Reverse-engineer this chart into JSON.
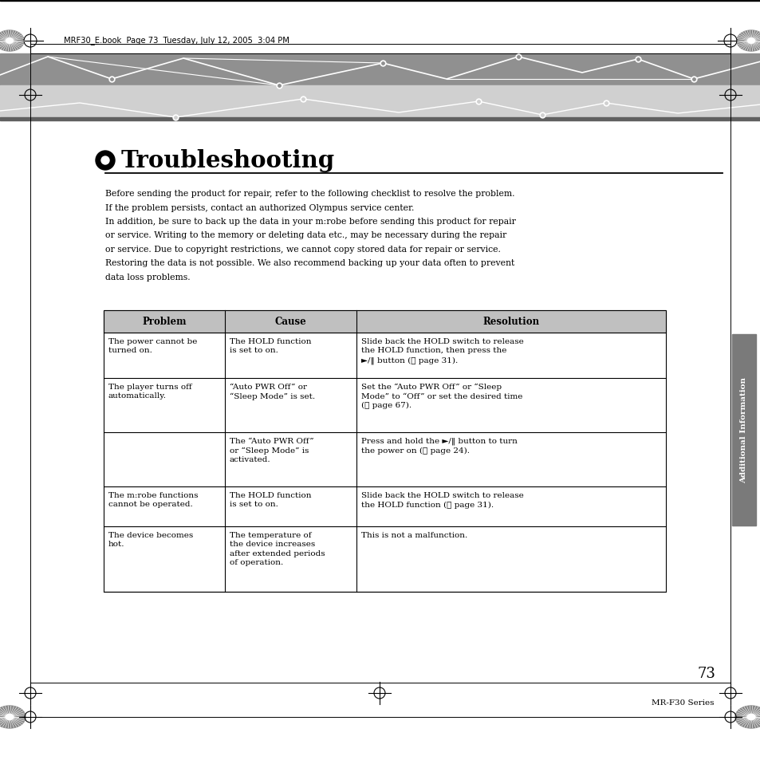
{
  "page_bg": "#ffffff",
  "header_text": "MRF30_E.book  Page 73  Tuesday, July 12, 2005  3:04 PM",
  "section_title": "Troubleshooting",
  "intro_lines": [
    "Before sending the product for repair, refer to the following checklist to resolve the problem.",
    "If the problem persists, contact an authorized Olympus service center.",
    "In addition, be sure to back up the data in your m:robe before sending this product for repair",
    "or service. Writing to the memory or deleting data etc., may be necessary during the repair",
    "or service. Due to copyright restrictions, we cannot copy stored data for repair or service.",
    "Restoring the data is not possible. We also recommend backing up your data often to prevent",
    "data loss problems."
  ],
  "table_header_bg": "#c0c0c0",
  "table_col_headers": [
    "Problem",
    "Cause",
    "Resolution"
  ],
  "table_rows": [
    {
      "problem": "The power cannot be\nturned on.",
      "cause": "The HOLD function\nis set to on.",
      "resolution": "Slide back the HOLD switch to release\nthe HOLD function, then press the\n►/‖ button (☉ page 31)."
    },
    {
      "problem": "The player turns off\nautomatically.",
      "cause": "“Auto PWR Off” or\n“Sleep Mode” is set.",
      "resolution": "Set the “Auto PWR Off” or “Sleep\nMode” to “Off” or set the desired time\n(☉ page 67)."
    },
    {
      "problem": "",
      "cause": "The “Auto PWR Off”\nor “Sleep Mode” is\nactivated.",
      "resolution": "Press and hold the ►/‖ button to turn\nthe power on (☉ page 24)."
    },
    {
      "problem": "The m:robe functions\ncannot be operated.",
      "cause": "The HOLD function\nis set to on.",
      "resolution": "Slide back the HOLD switch to release\nthe HOLD function (☉ page 31)."
    },
    {
      "problem": "The device becomes\nhot.",
      "cause": "The temperature of\nthe device increases\nafter extended periods\nof operation.",
      "resolution": "This is not a malfunction."
    }
  ],
  "side_tab_text": "Additional Information",
  "side_tab_bg": "#7a7a7a",
  "page_number": "73",
  "footer_text": "MR-F30 Series",
  "header_dark_color": "#909090",
  "header_mid_color": "#b8b8b8",
  "header_light_color": "#d0d0d0",
  "header_darkest": "#606060"
}
